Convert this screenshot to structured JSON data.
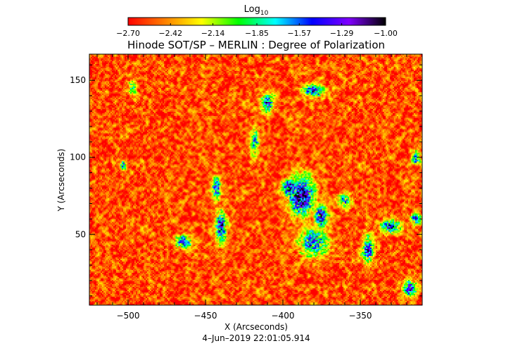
{
  "colorbar": {
    "label_base": "Log",
    "label_sub": "10",
    "range": [
      -2.7,
      -1.0
    ],
    "ticks": [
      "−2.70",
      "−2.42",
      "−2.14",
      "−1.85",
      "−1.57",
      "−1.29",
      "−1.00"
    ],
    "tick_values": [
      -2.7,
      -2.42,
      -2.14,
      -1.85,
      -1.57,
      -1.29,
      -1.0
    ],
    "colormap": [
      "#ff0000",
      "#ff8000",
      "#ffff00",
      "#00ff00",
      "#00ffff",
      "#0000ff",
      "#8000ff",
      "#000000"
    ]
  },
  "chart_data": {
    "type": "heatmap",
    "title": "Hinode SOT/SP – MERLIN : Degree of Polarization",
    "xlabel": "X (Arcseconds)",
    "ylabel": "Y (Arcseconds)",
    "timestamp": "4–Jun–2019 22:01:05.914",
    "xlim": [
      -525,
      -310
    ],
    "ylim": [
      4,
      167
    ],
    "x_ticks": [
      -500,
      -450,
      -400,
      -350
    ],
    "x_tick_labels": [
      "−500",
      "−450",
      "−400",
      "−350"
    ],
    "y_ticks": [
      50,
      100,
      150
    ],
    "y_tick_labels": [
      "50",
      "100",
      "150"
    ],
    "background_value": -2.55,
    "features": [
      {
        "x": -388,
        "y": 75,
        "rx": 9,
        "ry": 14,
        "peak": -1.15
      },
      {
        "x": -395,
        "y": 80,
        "rx": 6,
        "ry": 7,
        "peak": -1.25
      },
      {
        "x": -375,
        "y": 62,
        "rx": 5,
        "ry": 8,
        "peak": -1.35
      },
      {
        "x": -380,
        "y": 45,
        "rx": 10,
        "ry": 10,
        "peak": -1.5
      },
      {
        "x": -380,
        "y": 143,
        "rx": 8,
        "ry": 4,
        "peak": -1.4
      },
      {
        "x": -410,
        "y": 135,
        "rx": 5,
        "ry": 7,
        "peak": -1.5
      },
      {
        "x": -418,
        "y": 110,
        "rx": 3,
        "ry": 10,
        "peak": -1.7
      },
      {
        "x": -440,
        "y": 55,
        "rx": 4,
        "ry": 12,
        "peak": -1.35
      },
      {
        "x": -443,
        "y": 80,
        "rx": 3,
        "ry": 9,
        "peak": -1.5
      },
      {
        "x": -465,
        "y": 45,
        "rx": 6,
        "ry": 5,
        "peak": -1.55
      },
      {
        "x": -503,
        "y": 95,
        "rx": 2,
        "ry": 3,
        "peak": -1.35
      },
      {
        "x": -497,
        "y": 145,
        "rx": 3,
        "ry": 6,
        "peak": -1.9
      },
      {
        "x": -345,
        "y": 40,
        "rx": 4,
        "ry": 10,
        "peak": -1.4
      },
      {
        "x": -330,
        "y": 55,
        "rx": 7,
        "ry": 5,
        "peak": -1.35
      },
      {
        "x": -314,
        "y": 60,
        "rx": 4,
        "ry": 4,
        "peak": -1.5
      },
      {
        "x": -314,
        "y": 100,
        "rx": 3,
        "ry": 5,
        "peak": -1.5
      },
      {
        "x": -318,
        "y": 15,
        "rx": 5,
        "ry": 6,
        "peak": -1.45
      },
      {
        "x": -360,
        "y": 72,
        "rx": 5,
        "ry": 5,
        "peak": -1.7
      }
    ]
  }
}
